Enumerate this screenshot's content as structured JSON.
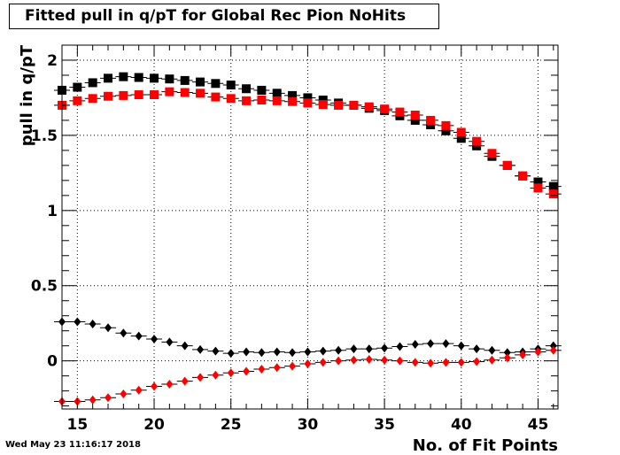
{
  "header": {
    "title": "Fitted pull in q/pT for Global Rec Pion NoHits",
    "timestamp": "Wed May 23 11:16:17 2018"
  },
  "chart_data": {
    "type": "scatter",
    "title": "Fitted pull in q/pT for Global Rec Pion NoHits",
    "xlabel": "No. of Fit Points",
    "ylabel": "pull in q/pT",
    "xlim": [
      14,
      46.3
    ],
    "ylim": [
      -0.32,
      2.1
    ],
    "x_ticks": [
      15,
      20,
      25,
      30,
      35,
      40,
      45
    ],
    "y_ticks": [
      0,
      0.5,
      1,
      1.5,
      2
    ],
    "grid": true,
    "x": [
      14,
      15,
      16,
      17,
      18,
      19,
      20,
      21,
      22,
      23,
      24,
      25,
      26,
      27,
      28,
      29,
      30,
      31,
      32,
      33,
      34,
      35,
      36,
      37,
      38,
      39,
      40,
      41,
      42,
      43,
      44,
      45,
      46
    ],
    "series": [
      {
        "marker": "square",
        "color": "#000000",
        "values": [
          1.8,
          1.82,
          1.85,
          1.88,
          1.89,
          1.885,
          1.88,
          1.875,
          1.865,
          1.855,
          1.845,
          1.835,
          1.81,
          1.8,
          1.78,
          1.765,
          1.75,
          1.735,
          1.715,
          1.7,
          1.68,
          1.665,
          1.63,
          1.6,
          1.57,
          1.53,
          1.48,
          1.43,
          1.36,
          1.3,
          1.23,
          1.19,
          1.16
        ]
      },
      {
        "marker": "square",
        "color": "#ff0000",
        "values": [
          1.7,
          1.73,
          1.745,
          1.76,
          1.765,
          1.77,
          1.77,
          1.79,
          1.785,
          1.78,
          1.755,
          1.745,
          1.73,
          1.735,
          1.73,
          1.725,
          1.715,
          1.705,
          1.7,
          1.7,
          1.69,
          1.675,
          1.655,
          1.635,
          1.6,
          1.565,
          1.52,
          1.46,
          1.38,
          1.3,
          1.23,
          1.15,
          1.11
        ]
      },
      {
        "marker": "diamond",
        "color": "#000000",
        "values": [
          0.26,
          0.26,
          0.245,
          0.22,
          0.185,
          0.165,
          0.145,
          0.125,
          0.1,
          0.075,
          0.065,
          0.05,
          0.06,
          0.055,
          0.06,
          0.055,
          0.06,
          0.065,
          0.07,
          0.08,
          0.08,
          0.085,
          0.095,
          0.11,
          0.115,
          0.115,
          0.1,
          0.08,
          0.07,
          0.055,
          0.06,
          0.08,
          0.1
        ]
      },
      {
        "marker": "diamond",
        "color": "#ff0000",
        "values": [
          -0.27,
          -0.27,
          -0.26,
          -0.245,
          -0.22,
          -0.195,
          -0.17,
          -0.155,
          -0.135,
          -0.11,
          -0.095,
          -0.08,
          -0.07,
          -0.055,
          -0.045,
          -0.035,
          -0.02,
          -0.01,
          0.0,
          0.005,
          0.01,
          0.005,
          0.0,
          -0.01,
          -0.015,
          -0.01,
          -0.01,
          -0.005,
          0.005,
          0.02,
          0.04,
          0.06,
          0.07
        ]
      }
    ]
  }
}
